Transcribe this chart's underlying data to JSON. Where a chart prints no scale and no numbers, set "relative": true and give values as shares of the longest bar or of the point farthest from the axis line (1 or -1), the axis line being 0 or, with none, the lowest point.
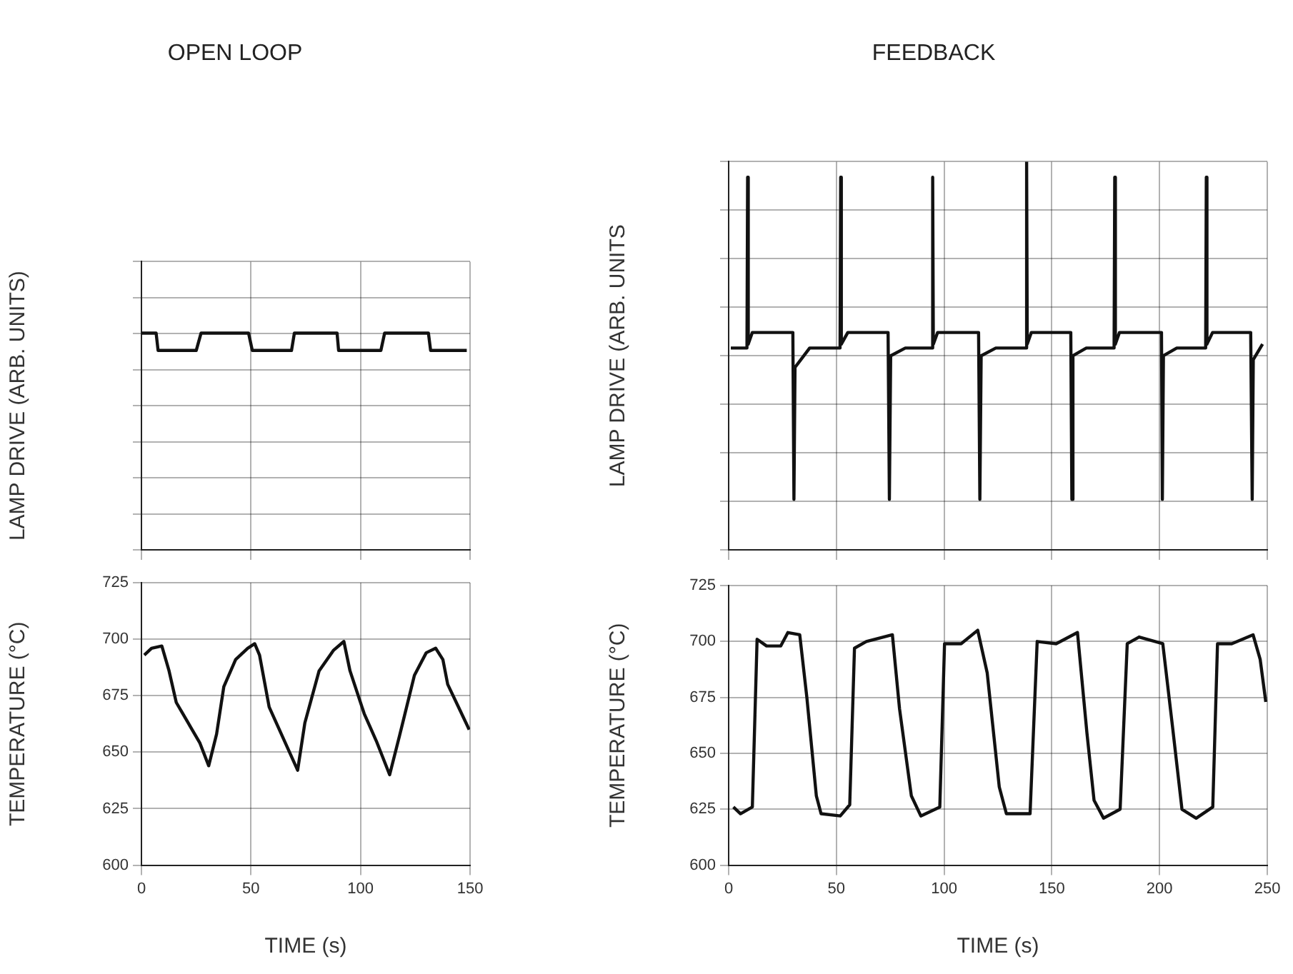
{
  "chart_data": [
    {
      "type": "line",
      "title": "OPEN LOOP",
      "ylabel": "LAMP DRIVE (ARB. UNITS)",
      "relative": true,
      "grid": true,
      "tick_labels": false,
      "xlim": [
        0,
        150
      ],
      "xticks": [
        0,
        50,
        100,
        150
      ],
      "series": [
        {
          "color": "#111111",
          "x": [
            0,
            6.7,
            7.6,
            25,
            27.2,
            48.9,
            50.6,
            68.5,
            69.8,
            89.3,
            90,
            109.3,
            111,
            131,
            132,
            148.5
          ],
          "values": [
            1,
            1,
            0.92,
            0.92,
            1,
            1,
            0.92,
            0.92,
            1,
            1,
            0.92,
            0.92,
            1,
            1,
            0.92,
            0.92
          ]
        }
      ]
    },
    {
      "type": "line",
      "title": "FEEDBACK",
      "ylabel": "LAMP DRIVE (ARB. UNITS",
      "relative": true,
      "grid": true,
      "tick_labels": false,
      "xlim": [
        0,
        250
      ],
      "xticks": [
        0,
        50,
        100,
        150,
        200,
        250
      ],
      "series": [
        {
          "color": "#111111",
          "x": [
            1,
            8.5,
            8.8,
            9.1,
            11,
            29.8,
            30.3,
            30.8,
            37.6,
            51.7,
            52,
            52.3,
            55.3,
            74,
            74.6,
            75.2,
            82,
            94.4,
            94.7,
            95,
            97,
            116,
            116.6,
            117.2,
            124,
            138,
            138.3,
            138.6,
            140.5,
            158.8,
            159.3,
            159.8,
            166,
            178.9,
            179.2,
            179.5,
            181.4,
            200.9,
            201.3,
            201.8,
            208,
            221.4,
            221.7,
            222,
            224.6,
            242.3,
            243,
            243.5,
            247.8
          ],
          "values": [
            0.52,
            0.52,
            0.96,
            0.53,
            0.56,
            0.56,
            0.13,
            0.47,
            0.52,
            0.52,
            0.96,
            0.53,
            0.56,
            0.56,
            0.13,
            0.5,
            0.52,
            0.52,
            0.96,
            0.53,
            0.56,
            0.56,
            0.13,
            0.5,
            0.52,
            0.52,
            1,
            0.53,
            0.56,
            0.56,
            0.13,
            0.5,
            0.52,
            0.52,
            0.96,
            0.53,
            0.56,
            0.56,
            0.13,
            0.5,
            0.52,
            0.52,
            0.96,
            0.53,
            0.56,
            0.56,
            0.13,
            0.49,
            0.53
          ]
        }
      ]
    },
    {
      "type": "line",
      "xlabel": "TIME (s)",
      "ylabel": "TEMPERATURE (°C)",
      "grid": true,
      "xlim": [
        0,
        150
      ],
      "xticks": [
        0,
        50,
        100,
        150
      ],
      "ylim": [
        600,
        725
      ],
      "yticks": [
        600,
        625,
        650,
        675,
        700,
        725
      ],
      "series": [
        {
          "color": "#111111",
          "x": [
            1.3,
            4.6,
            9.3,
            12.6,
            15.9,
            21.3,
            26.7,
            30.7,
            34.3,
            37.6,
            43,
            48.5,
            51.7,
            53.9,
            58.3,
            64.8,
            71.3,
            74.6,
            81.1,
            87.6,
            92.4,
            95.2,
            101.7,
            107.2,
            113.3,
            118,
            124.6,
            130,
            134.3,
            137.6,
            139.8,
            145.2,
            149.6
          ],
          "values": [
            693,
            696,
            697,
            686,
            672,
            663,
            654,
            644,
            658,
            679,
            691,
            696,
            698,
            693,
            670,
            656,
            642,
            663,
            686,
            695,
            699,
            686,
            667,
            655,
            640,
            658,
            684,
            694,
            696,
            691,
            680,
            669,
            660
          ]
        }
      ]
    },
    {
      "type": "line",
      "xlabel": "TIME (s)",
      "ylabel": "TEMPERATURE (°C)",
      "grid": true,
      "xlim": [
        0,
        250
      ],
      "xticks": [
        0,
        50,
        100,
        150,
        200,
        250
      ],
      "ylim": [
        600,
        725
      ],
      "yticks": [
        600,
        625,
        650,
        675,
        700,
        725
      ],
      "series": [
        {
          "color": "#111111",
          "x": [
            2.2,
            5.5,
            11,
            13.2,
            17.6,
            24.2,
            27.5,
            33,
            36.3,
            40.7,
            42.9,
            51.8,
            56.2,
            58.4,
            63.9,
            76,
            79.3,
            84.8,
            89.2,
            98,
            100.2,
            107.9,
            115.6,
            120,
            125.6,
            128.9,
            139.9,
            143.2,
            152,
            161.9,
            166.3,
            169.6,
            174,
            181.7,
            185,
            190.5,
            201.5,
            206,
            210.4,
            217,
            224.7,
            226.9,
            233.5,
            243.4,
            246.7,
            249.3
          ],
          "values": [
            626,
            623,
            626,
            701,
            698,
            698,
            704,
            703,
            675,
            631,
            623,
            622,
            627,
            697,
            700,
            703,
            670,
            631,
            622,
            626,
            699,
            699,
            705,
            686,
            635,
            623,
            623,
            700,
            699,
            704,
            659,
            629,
            621,
            625,
            699,
            702,
            699,
            662,
            625,
            621,
            626,
            699,
            699,
            703,
            692,
            673
          ]
        }
      ]
    }
  ]
}
